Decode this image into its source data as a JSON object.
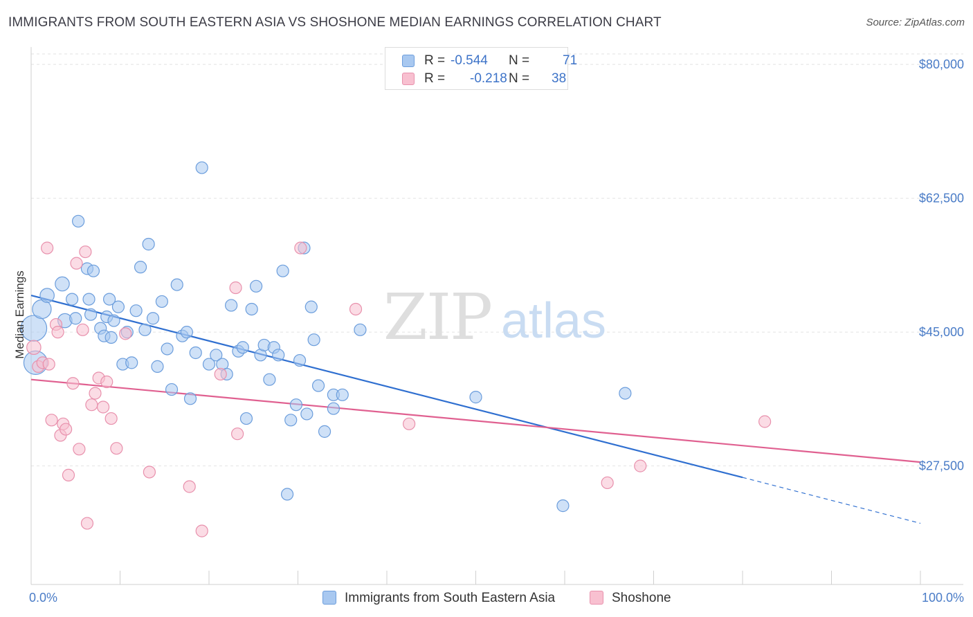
{
  "title": "IMMIGRANTS FROM SOUTH EASTERN ASIA VS SHOSHONE MEDIAN EARNINGS CORRELATION CHART",
  "source": "Source: ZipAtlas.com",
  "watermark": {
    "zip": "ZIP",
    "atlas": "atlas"
  },
  "legend": {
    "r_label": "R =",
    "n_label": "N =",
    "series": [
      {
        "r": "-0.544",
        "n": "71",
        "color": "#a8c8f0",
        "border": "#6b9ddc"
      },
      {
        "r": "-0.218",
        "n": "38",
        "color": "#f8c0d0",
        "border": "#e890ac"
      }
    ]
  },
  "bottom_legend": [
    "Immigrants from South Eastern Asia",
    "Shoshone"
  ],
  "chart_data": {
    "type": "scatter",
    "title": "IMMIGRANTS FROM SOUTH EASTERN ASIA VS SHOSHONE MEDIAN EARNINGS CORRELATION CHART",
    "xlabel": "",
    "ylabel": "Median Earnings",
    "xlim": [
      0,
      100
    ],
    "ylim": [
      12000,
      83000
    ],
    "x_tick_labels": [
      "0.0%",
      "100.0%"
    ],
    "y_ticks": [
      27500,
      45000,
      62500,
      80000
    ],
    "y_tick_labels": [
      "$27,500",
      "$45,000",
      "$62,500",
      "$80,000"
    ],
    "grid": true,
    "legend_placement": "top-center",
    "series": [
      {
        "name": "Immigrants from South Eastern Asia",
        "color": "#a8c8f0",
        "stroke": "#6b9ddc",
        "trend": {
          "x0": 0,
          "y0": 49800,
          "x1": 80,
          "y1": 26000,
          "dash_to_x": 100,
          "dash_to_y": 20000,
          "color": "#2f6fd0"
        },
        "points": [
          [
            0.3,
            45500,
            2.2
          ],
          [
            0.5,
            41000,
            2.0
          ],
          [
            1.2,
            48000,
            1.6
          ],
          [
            1.8,
            49800,
            1.2
          ],
          [
            3.5,
            51300,
            1.2
          ],
          [
            3.8,
            46500,
            1.2
          ],
          [
            4.6,
            49300,
            1.0
          ],
          [
            5.3,
            59500,
            1.0
          ],
          [
            6.3,
            53300,
            1.0
          ],
          [
            6.7,
            47300,
            1.0
          ],
          [
            7.0,
            53000,
            1.0
          ],
          [
            6.5,
            49300,
            1.0
          ],
          [
            7.8,
            45500,
            1.0
          ],
          [
            8.2,
            44500,
            1.0
          ],
          [
            8.5,
            47000,
            1.0
          ],
          [
            8.8,
            49300,
            1.0
          ],
          [
            9.3,
            46500,
            1.0
          ],
          [
            9.8,
            48300,
            1.0
          ],
          [
            10.3,
            40800,
            1.0
          ],
          [
            10.8,
            45000,
            1.0
          ],
          [
            11.3,
            41000,
            1.0
          ],
          [
            11.8,
            47800,
            1.0
          ],
          [
            12.3,
            53500,
            1.0
          ],
          [
            12.8,
            45300,
            1.0
          ],
          [
            13.2,
            56500,
            1.0
          ],
          [
            13.7,
            46800,
            1.0
          ],
          [
            14.2,
            40500,
            1.0
          ],
          [
            14.7,
            49000,
            1.0
          ],
          [
            15.3,
            42800,
            1.0
          ],
          [
            15.8,
            37500,
            1.0
          ],
          [
            16.4,
            51200,
            1.0
          ],
          [
            17.0,
            44500,
            1.0
          ],
          [
            17.5,
            45000,
            1.0
          ],
          [
            17.9,
            36300,
            1.0
          ],
          [
            18.5,
            42300,
            1.0
          ],
          [
            19.2,
            66500,
            1.0
          ],
          [
            20.0,
            40800,
            1.0
          ],
          [
            20.8,
            42000,
            1.0
          ],
          [
            21.5,
            40800,
            1.0
          ],
          [
            22.0,
            39500,
            1.0
          ],
          [
            22.5,
            48500,
            1.0
          ],
          [
            23.3,
            42500,
            1.0
          ],
          [
            23.8,
            43000,
            1.0
          ],
          [
            24.2,
            33700,
            1.0
          ],
          [
            24.8,
            48000,
            1.0
          ],
          [
            25.3,
            51000,
            1.0
          ],
          [
            25.8,
            42000,
            1.0
          ],
          [
            26.2,
            43300,
            1.0
          ],
          [
            26.8,
            38800,
            1.0
          ],
          [
            27.3,
            43000,
            1.0
          ],
          [
            27.8,
            42000,
            1.0
          ],
          [
            28.3,
            53000,
            1.0
          ],
          [
            28.8,
            23800,
            1.0
          ],
          [
            29.2,
            33500,
            1.0
          ],
          [
            29.8,
            35500,
            1.0
          ],
          [
            30.2,
            41300,
            1.0
          ],
          [
            30.7,
            56000,
            1.0
          ],
          [
            31.0,
            34300,
            1.0
          ],
          [
            31.5,
            48300,
            1.0
          ],
          [
            31.8,
            44000,
            1.0
          ],
          [
            32.3,
            38000,
            1.0
          ],
          [
            33.0,
            32000,
            1.0
          ],
          [
            34.0,
            35000,
            1.0
          ],
          [
            34.0,
            36800,
            1.0
          ],
          [
            35.0,
            36800,
            1.0
          ],
          [
            37.0,
            45300,
            1.0
          ],
          [
            50.0,
            36500,
            1.0
          ],
          [
            59.8,
            22300,
            1.0
          ],
          [
            66.8,
            37000,
            1.0
          ],
          [
            5.0,
            46800,
            1.0
          ],
          [
            9.0,
            44300,
            1.0
          ]
        ]
      },
      {
        "name": "Shoshone",
        "color": "#f8c0d0",
        "stroke": "#e890ac",
        "trend": {
          "x0": 0,
          "y0": 38800,
          "x1": 100,
          "y1": 28000,
          "color": "#e06090"
        },
        "points": [
          [
            0.3,
            43000,
            1.2
          ],
          [
            0.8,
            40500,
            1.0
          ],
          [
            1.3,
            41000,
            1.0
          ],
          [
            1.8,
            56000,
            1.0
          ],
          [
            2.3,
            33500,
            1.0
          ],
          [
            2.8,
            46000,
            1.0
          ],
          [
            3.0,
            45000,
            1.0
          ],
          [
            3.3,
            31500,
            1.0
          ],
          [
            3.6,
            33000,
            1.0
          ],
          [
            3.9,
            32300,
            1.0
          ],
          [
            4.2,
            26300,
            1.0
          ],
          [
            4.7,
            38300,
            1.0
          ],
          [
            5.1,
            54000,
            1.0
          ],
          [
            5.4,
            29700,
            1.0
          ],
          [
            5.8,
            45300,
            1.0
          ],
          [
            6.1,
            55500,
            1.0
          ],
          [
            6.3,
            20000,
            1.0
          ],
          [
            6.8,
            35500,
            1.0
          ],
          [
            7.2,
            37000,
            1.0
          ],
          [
            7.6,
            39000,
            1.0
          ],
          [
            8.1,
            35200,
            1.0
          ],
          [
            8.5,
            38500,
            1.0
          ],
          [
            9.0,
            33700,
            1.0
          ],
          [
            9.6,
            29800,
            1.0
          ],
          [
            10.6,
            44800,
            1.0
          ],
          [
            13.3,
            26700,
            1.0
          ],
          [
            17.8,
            24800,
            1.0
          ],
          [
            19.2,
            19000,
            1.0
          ],
          [
            21.3,
            39500,
            1.0
          ],
          [
            23.0,
            50800,
            1.0
          ],
          [
            23.2,
            31700,
            1.0
          ],
          [
            30.3,
            56000,
            1.0
          ],
          [
            36.5,
            48000,
            1.0
          ],
          [
            42.5,
            33000,
            1.0
          ],
          [
            64.8,
            25300,
            1.0
          ],
          [
            68.5,
            27500,
            1.0
          ],
          [
            82.5,
            33300,
            1.0
          ],
          [
            2.0,
            40800,
            1.0
          ]
        ]
      }
    ]
  }
}
